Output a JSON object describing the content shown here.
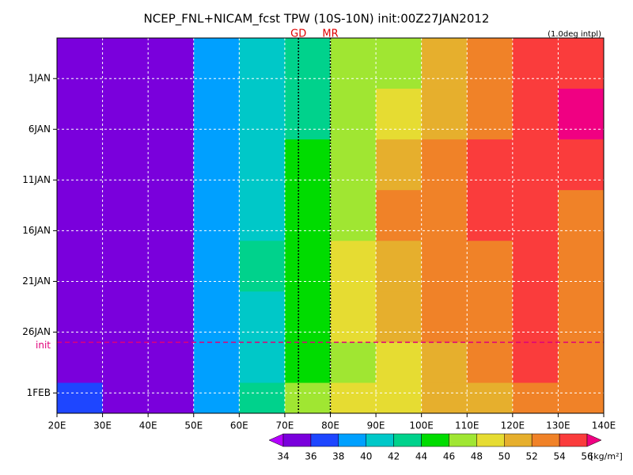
{
  "chart_data": {
    "type": "heatmap",
    "title": "NCEP_FNL+NICAM_fcst TPW (10S-10N) init:00Z27JAN2012",
    "note": "(1.0deg intpl)",
    "x_bins": [
      20,
      30,
      40,
      50,
      60,
      70,
      80,
      90,
      100,
      110,
      120,
      130,
      140
    ],
    "y_bins": [
      -3,
      2,
      7,
      12,
      17,
      22,
      27,
      31,
      34
    ],
    "values": [
      [
        34,
        34,
        35,
        38,
        41,
        43,
        46,
        47,
        50,
        53,
        55,
        55
      ],
      [
        35,
        34,
        34,
        38,
        40,
        43,
        46,
        48,
        50,
        53,
        55,
        56
      ],
      [
        34,
        34,
        34,
        39,
        41,
        44,
        46,
        50,
        52,
        54,
        55,
        54
      ],
      [
        35,
        34,
        34,
        38,
        41,
        44,
        47,
        52,
        53,
        54,
        54,
        53
      ],
      [
        34,
        34,
        34,
        38,
        42,
        45,
        48,
        51,
        52,
        53,
        54,
        53
      ],
      [
        34,
        34,
        35,
        38,
        41,
        45,
        48,
        50,
        52,
        53,
        54,
        53
      ],
      [
        35,
        34,
        34,
        38,
        40,
        45,
        47,
        49,
        51,
        53,
        54,
        53
      ],
      [
        36,
        34,
        35,
        39,
        42,
        46,
        48,
        49,
        50,
        51,
        52,
        52
      ]
    ],
    "xlim": [
      20,
      140
    ],
    "xticks": [
      {
        "value": 20,
        "label": "20E"
      },
      {
        "value": 30,
        "label": "30E"
      },
      {
        "value": 40,
        "label": "40E"
      },
      {
        "value": 50,
        "label": "50E"
      },
      {
        "value": 60,
        "label": "60E"
      },
      {
        "value": 70,
        "label": "70E"
      },
      {
        "value": 80,
        "label": "80E"
      },
      {
        "value": 90,
        "label": "90E"
      },
      {
        "value": 100,
        "label": "100E"
      },
      {
        "value": 110,
        "label": "110E"
      },
      {
        "value": 120,
        "label": "120E"
      },
      {
        "value": 130,
        "label": "130E"
      },
      {
        "value": 140,
        "label": "140E"
      }
    ],
    "ylim": [
      -3,
      34
    ],
    "y_inverted": true,
    "yticks": [
      {
        "value": 1,
        "label": "1JAN"
      },
      {
        "value": 6,
        "label": "6JAN"
      },
      {
        "value": 11,
        "label": "11JAN"
      },
      {
        "value": 16,
        "label": "16JAN"
      },
      {
        "value": 21,
        "label": "21JAN"
      },
      {
        "value": 26,
        "label": "26JAN"
      },
      {
        "value": 32,
        "label": "1FEB"
      }
    ],
    "grid": true,
    "markers": [
      {
        "label": "GD",
        "x": 73
      },
      {
        "label": "MR",
        "x": 80
      }
    ],
    "init_line": {
      "label": "init",
      "y": 27
    },
    "colorbar": {
      "levels": [
        34,
        36,
        38,
        40,
        42,
        44,
        46,
        48,
        50,
        52,
        54,
        56
      ],
      "colors": [
        "#b400ff",
        "#7a00dc",
        "#1e46ff",
        "#00a0ff",
        "#00c8c8",
        "#00d28c",
        "#00dc00",
        "#a0e632",
        "#e6dc32",
        "#e6af2d",
        "#f08228",
        "#fa3c3c",
        "#f00082"
      ],
      "unit": "[kg/m²]"
    }
  }
}
